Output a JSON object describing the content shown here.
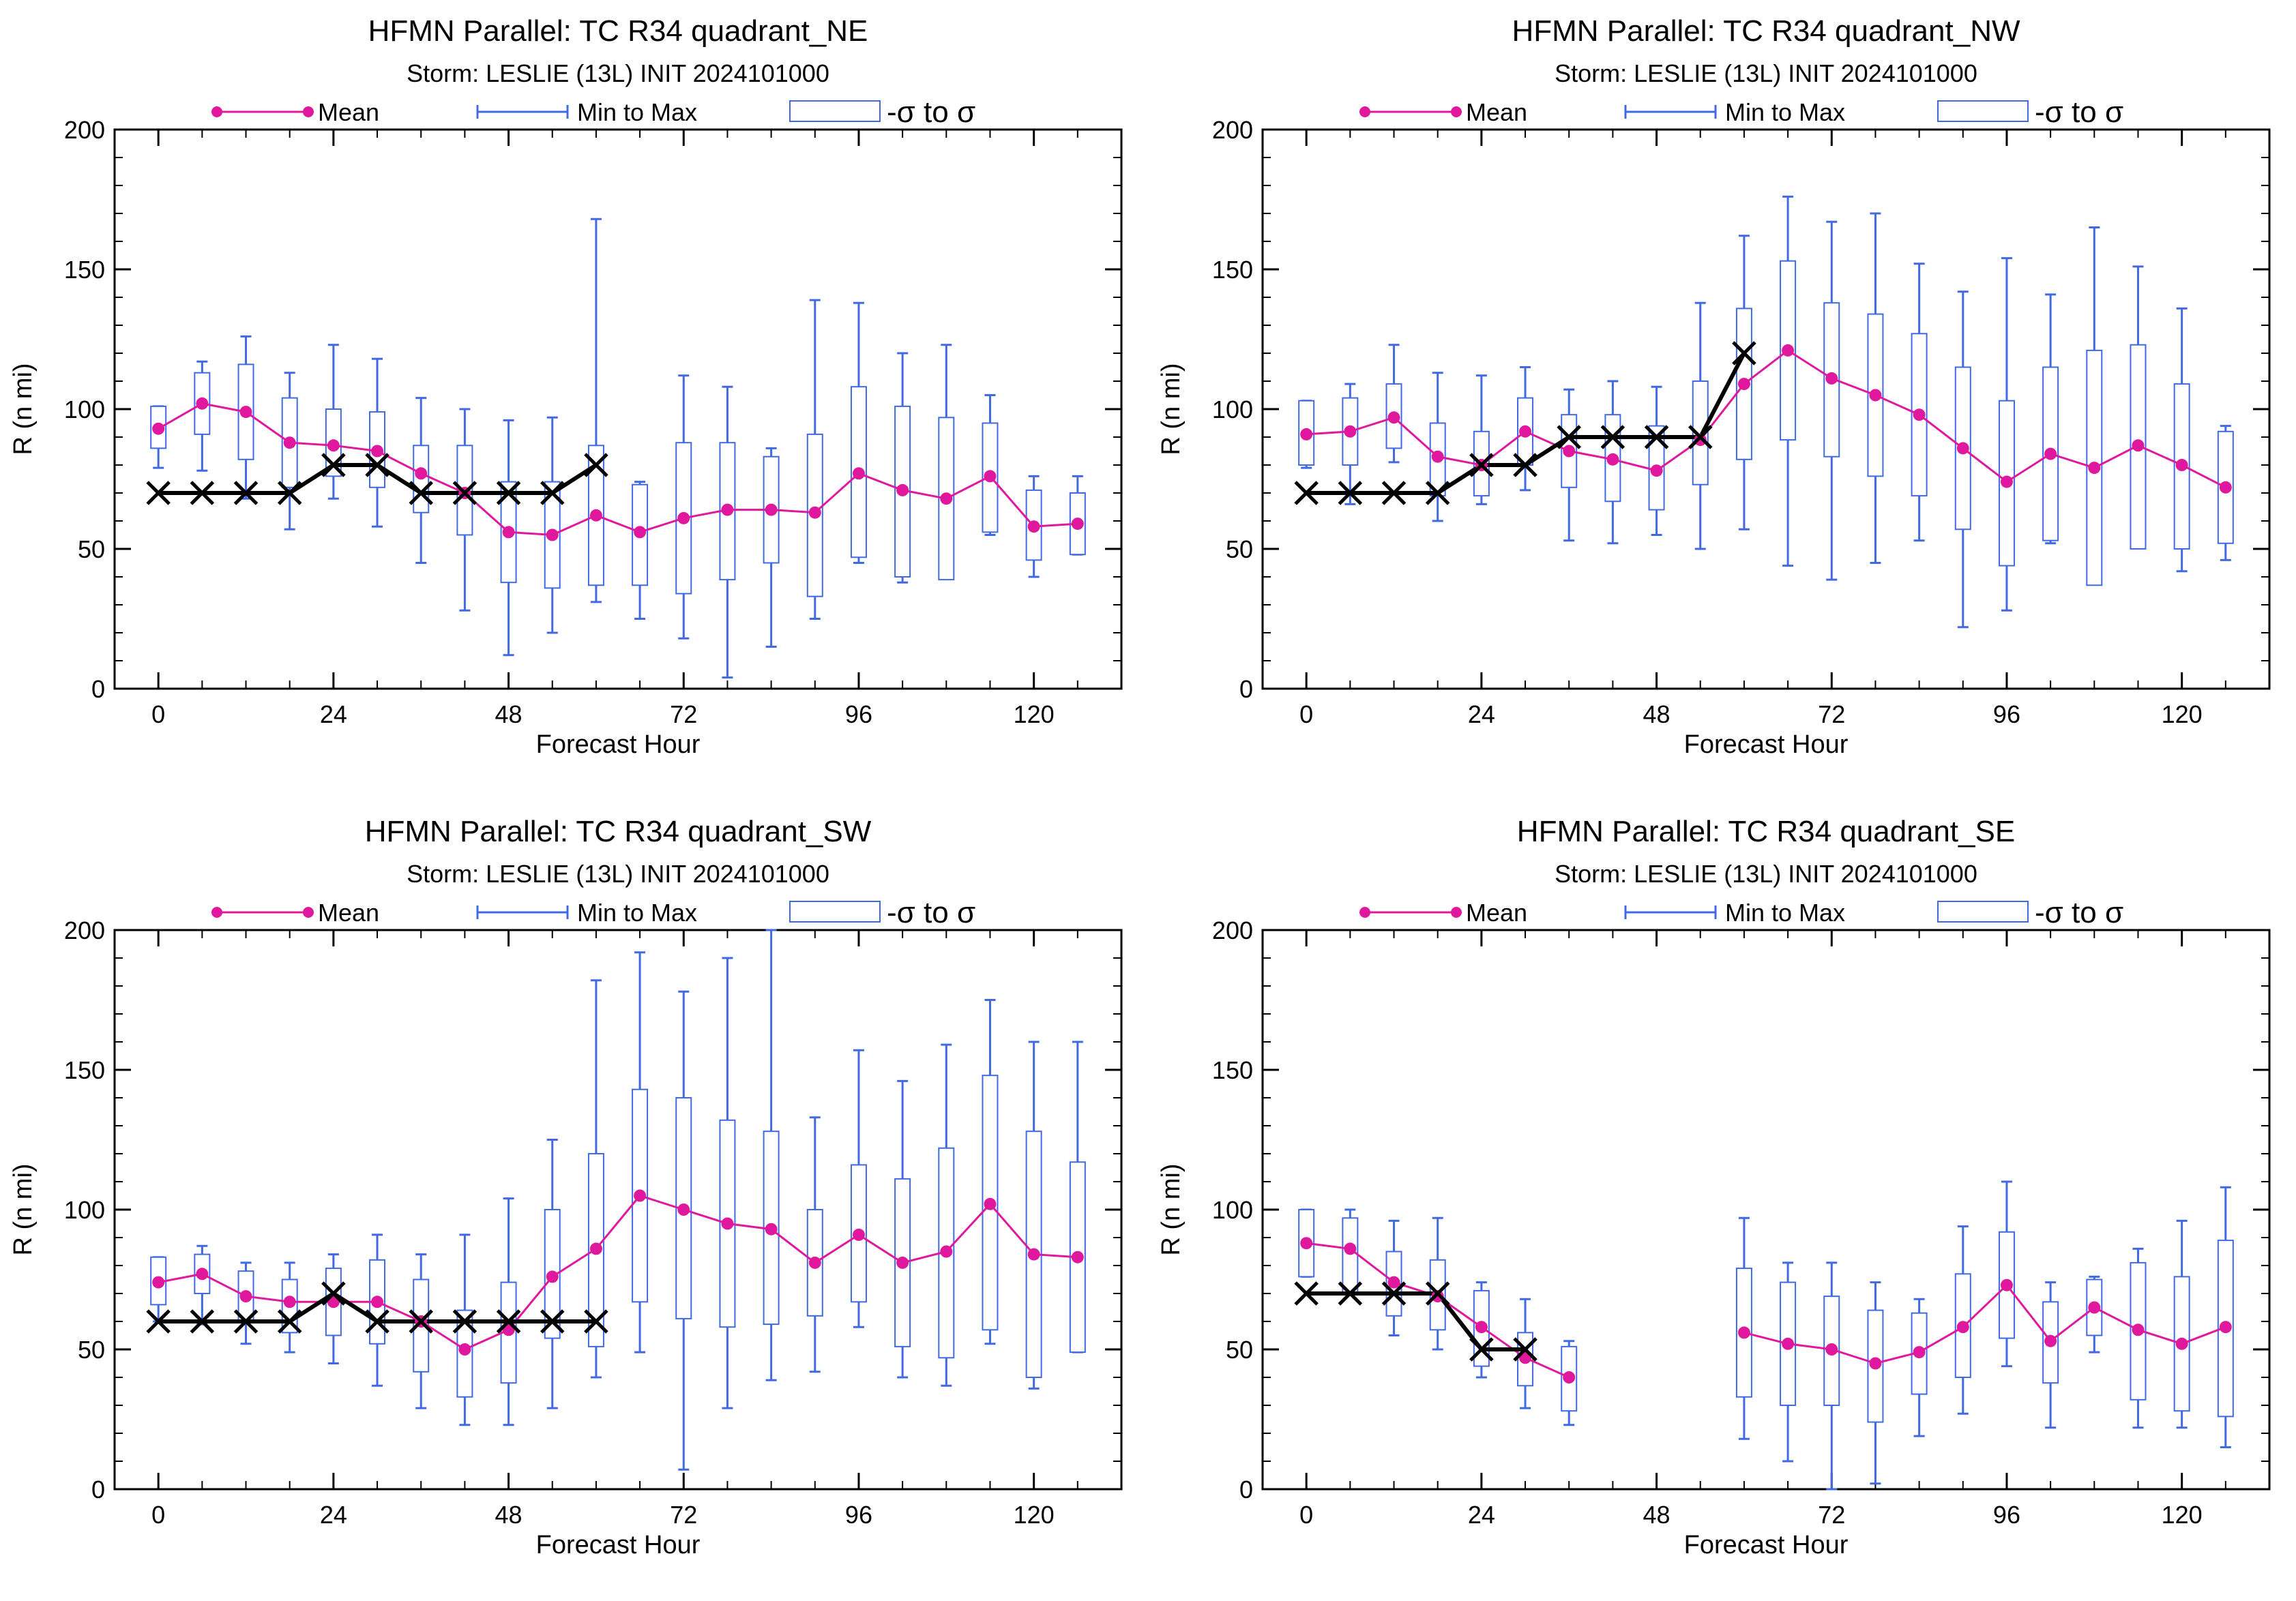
{
  "figure_title_prefix": "HFMN Parallel: TC  R34 ",
  "legend": {
    "mean": "Mean",
    "minmax": "Min to Max",
    "sigma": "-σ to σ"
  },
  "colors": {
    "mean": "#e0189e",
    "box": "#4169e1",
    "truth": "#000000",
    "frame": "#000000"
  },
  "chart_data": [
    {
      "type": "box",
      "title": "HFMN Parallel: TC  R34 quadrant_NE",
      "subtitle": "Storm: LESLIE (13L) INIT 2024101000",
      "xlabel": "Forecast Hour",
      "ylabel": "R (n mi)",
      "xlim": [
        -6,
        132
      ],
      "ylim": [
        0,
        200
      ],
      "xticks": [
        0,
        24,
        48,
        72,
        96,
        120
      ],
      "yticks": [
        0,
        50,
        100,
        150,
        200
      ],
      "grid": false,
      "legend_placement": "top",
      "hours": [
        0,
        6,
        12,
        18,
        24,
        30,
        36,
        42,
        48,
        54,
        60,
        66,
        72,
        78,
        84,
        90,
        96,
        102,
        108,
        114,
        120,
        126
      ],
      "mean": [
        93,
        102,
        99,
        88,
        87,
        85,
        77,
        70,
        56,
        55,
        62,
        56,
        61,
        64,
        64,
        63,
        77,
        71,
        68,
        76,
        58,
        59
      ],
      "min": [
        79,
        78,
        68,
        57,
        68,
        58,
        45,
        28,
        12,
        20,
        31,
        25,
        18,
        4,
        15,
        25,
        45,
        38,
        40,
        55,
        40,
        48
      ],
      "max": [
        101,
        117,
        126,
        113,
        123,
        118,
        104,
        100,
        96,
        97,
        168,
        74,
        112,
        108,
        86,
        139,
        138,
        120,
        123,
        105,
        76,
        76
      ],
      "sigma_low": [
        86,
        91,
        82,
        72,
        76,
        72,
        63,
        55,
        38,
        36,
        37,
        37,
        34,
        39,
        45,
        33,
        47,
        40,
        39,
        56,
        46,
        48
      ],
      "sigma_high": [
        101,
        113,
        116,
        104,
        100,
        99,
        87,
        87,
        74,
        74,
        87,
        73,
        88,
        88,
        83,
        91,
        108,
        101,
        97,
        95,
        71,
        70
      ],
      "truth_hours": [
        0,
        6,
        12,
        18,
        24,
        30,
        36,
        42,
        48,
        54,
        60
      ],
      "truth": [
        70,
        70,
        70,
        70,
        80,
        80,
        70,
        70,
        70,
        70,
        80
      ]
    },
    {
      "type": "box",
      "title": "HFMN Parallel: TC  R34 quadrant_NW",
      "subtitle": "Storm: LESLIE (13L) INIT 2024101000",
      "xlabel": "Forecast Hour",
      "ylabel": "R (n mi)",
      "xlim": [
        -6,
        132
      ],
      "ylim": [
        0,
        200
      ],
      "xticks": [
        0,
        24,
        48,
        72,
        96,
        120
      ],
      "yticks": [
        0,
        50,
        100,
        150,
        200
      ],
      "grid": false,
      "legend_placement": "top",
      "hours": [
        0,
        6,
        12,
        18,
        24,
        30,
        36,
        42,
        48,
        54,
        60,
        66,
        72,
        78,
        84,
        90,
        96,
        102,
        108,
        114,
        120,
        126
      ],
      "mean": [
        91,
        92,
        97,
        83,
        80,
        92,
        85,
        82,
        78,
        89,
        109,
        121,
        111,
        105,
        98,
        86,
        74,
        84,
        79,
        87,
        80,
        72
      ],
      "min": [
        79,
        66,
        81,
        60,
        66,
        71,
        53,
        52,
        55,
        50,
        57,
        44,
        39,
        45,
        53,
        22,
        28,
        52,
        42,
        56,
        42,
        46
      ],
      "max": [
        103,
        109,
        123,
        113,
        112,
        115,
        107,
        110,
        108,
        138,
        162,
        176,
        167,
        170,
        152,
        142,
        154,
        141,
        165,
        151,
        136,
        94
      ],
      "sigma_low": [
        80,
        80,
        86,
        69,
        69,
        80,
        72,
        67,
        64,
        73,
        82,
        89,
        83,
        76,
        69,
        57,
        44,
        53,
        37,
        50,
        50,
        52
      ],
      "sigma_high": [
        103,
        104,
        109,
        95,
        92,
        104,
        98,
        98,
        94,
        110,
        136,
        153,
        138,
        134,
        127,
        115,
        103,
        115,
        121,
        123,
        109,
        92
      ],
      "truth_hours": [
        0,
        6,
        12,
        18,
        24,
        30,
        36,
        42,
        48,
        54,
        60
      ],
      "truth": [
        70,
        70,
        70,
        70,
        80,
        80,
        90,
        90,
        90,
        90,
        120
      ]
    },
    {
      "type": "box",
      "title": "HFMN Parallel: TC  R34 quadrant_SW",
      "subtitle": "Storm: LESLIE (13L) INIT 2024101000",
      "xlabel": "Forecast Hour",
      "ylabel": "R (n mi)",
      "xlim": [
        -6,
        132
      ],
      "ylim": [
        0,
        200
      ],
      "xticks": [
        0,
        24,
        48,
        72,
        96,
        120
      ],
      "yticks": [
        0,
        50,
        100,
        150,
        200
      ],
      "grid": false,
      "legend_placement": "top",
      "hours": [
        0,
        6,
        12,
        18,
        24,
        30,
        36,
        42,
        48,
        54,
        60,
        66,
        72,
        78,
        84,
        90,
        96,
        102,
        108,
        114,
        120,
        126
      ],
      "mean": [
        74,
        77,
        69,
        67,
        67,
        67,
        60,
        50,
        57,
        76,
        86,
        105,
        100,
        95,
        93,
        81,
        91,
        81,
        85,
        102,
        84,
        83
      ],
      "min": [
        60,
        59,
        52,
        49,
        45,
        37,
        29,
        23,
        23,
        29,
        40,
        49,
        7,
        29,
        39,
        42,
        58,
        40,
        37,
        52,
        36,
        49
      ],
      "max": [
        83,
        87,
        81,
        81,
        84,
        91,
        84,
        91,
        104,
        125,
        182,
        192,
        178,
        190,
        200,
        133,
        157,
        146,
        159,
        175,
        160,
        160
      ],
      "sigma_low": [
        66,
        70,
        60,
        56,
        55,
        52,
        42,
        33,
        38,
        54,
        51,
        67,
        61,
        58,
        59,
        62,
        67,
        51,
        47,
        57,
        40,
        49
      ],
      "sigma_high": [
        83,
        84,
        78,
        75,
        79,
        82,
        75,
        64,
        74,
        100,
        120,
        143,
        140,
        132,
        128,
        100,
        116,
        111,
        122,
        148,
        128,
        117
      ],
      "truth_hours": [
        0,
        6,
        12,
        18,
        24,
        30,
        36,
        42,
        48,
        54,
        60
      ],
      "truth": [
        60,
        60,
        60,
        60,
        70,
        60,
        60,
        60,
        60,
        60,
        60
      ]
    },
    {
      "type": "box",
      "title": "HFMN Parallel: TC  R34 quadrant_SE",
      "subtitle": "Storm: LESLIE (13L) INIT 2024101000",
      "xlabel": "Forecast Hour",
      "ylabel": "R (n mi)",
      "xlim": [
        -6,
        132
      ],
      "ylim": [
        0,
        200
      ],
      "xticks": [
        0,
        24,
        48,
        72,
        96,
        120
      ],
      "yticks": [
        0,
        50,
        100,
        150,
        200
      ],
      "grid": false,
      "legend_placement": "top",
      "hours": [
        0,
        6,
        12,
        18,
        24,
        30,
        36,
        60,
        66,
        72,
        78,
        84,
        90,
        96,
        102,
        108,
        114,
        120,
        126
      ],
      "mean": [
        88,
        86,
        74,
        69,
        58,
        47,
        40,
        56,
        52,
        50,
        45,
        49,
        58,
        73,
        53,
        65,
        57,
        52,
        58
      ],
      "min": [
        76,
        70,
        55,
        50,
        40,
        29,
        23,
        18,
        10,
        0,
        2,
        19,
        27,
        44,
        22,
        49,
        22,
        22,
        15
      ],
      "max": [
        100,
        100,
        96,
        97,
        74,
        68,
        53,
        97,
        81,
        81,
        74,
        68,
        94,
        110,
        74,
        76,
        86,
        96,
        108
      ],
      "sigma_low": [
        76,
        70,
        62,
        57,
        44,
        37,
        28,
        33,
        30,
        30,
        24,
        34,
        40,
        54,
        38,
        55,
        32,
        28,
        26
      ],
      "sigma_high": [
        100,
        97,
        85,
        82,
        71,
        56,
        51,
        79,
        74,
        69,
        64,
        63,
        77,
        92,
        67,
        75,
        81,
        76,
        89
      ],
      "truth_hours": [
        0,
        6,
        12,
        18,
        24,
        30
      ],
      "truth": [
        70,
        70,
        70,
        70,
        50,
        50
      ]
    }
  ]
}
